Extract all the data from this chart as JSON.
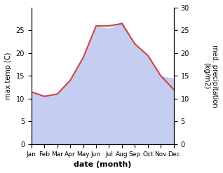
{
  "months": [
    "Jan",
    "Feb",
    "Mar",
    "Apr",
    "May",
    "Jun",
    "Jul",
    "Aug",
    "Sep",
    "Oct",
    "Nov",
    "Dec"
  ],
  "max_temp": [
    11.5,
    10.5,
    11.0,
    14.0,
    19.0,
    26.0,
    26.0,
    26.5,
    22.0,
    19.5,
    15.0,
    12.0
  ],
  "precipitation": [
    11.5,
    10.5,
    11.0,
    14.0,
    19.5,
    26.0,
    25.5,
    27.0,
    22.0,
    19.5,
    15.0,
    14.5
  ],
  "temp_color": "#cc4444",
  "precip_fill_color": "#c5cef0",
  "temp_ylim": [
    0,
    30
  ],
  "precip_ylim": [
    0,
    30
  ],
  "temp_yticks": [
    0,
    5,
    10,
    15,
    20,
    25
  ],
  "precip_yticks": [
    0,
    5,
    10,
    15,
    20,
    25,
    30
  ],
  "xlabel": "date (month)",
  "ylabel_left": "max temp (C)",
  "ylabel_right": "med. precipitation\n(kg/m2)",
  "figsize": [
    3.18,
    2.47
  ],
  "dpi": 100
}
